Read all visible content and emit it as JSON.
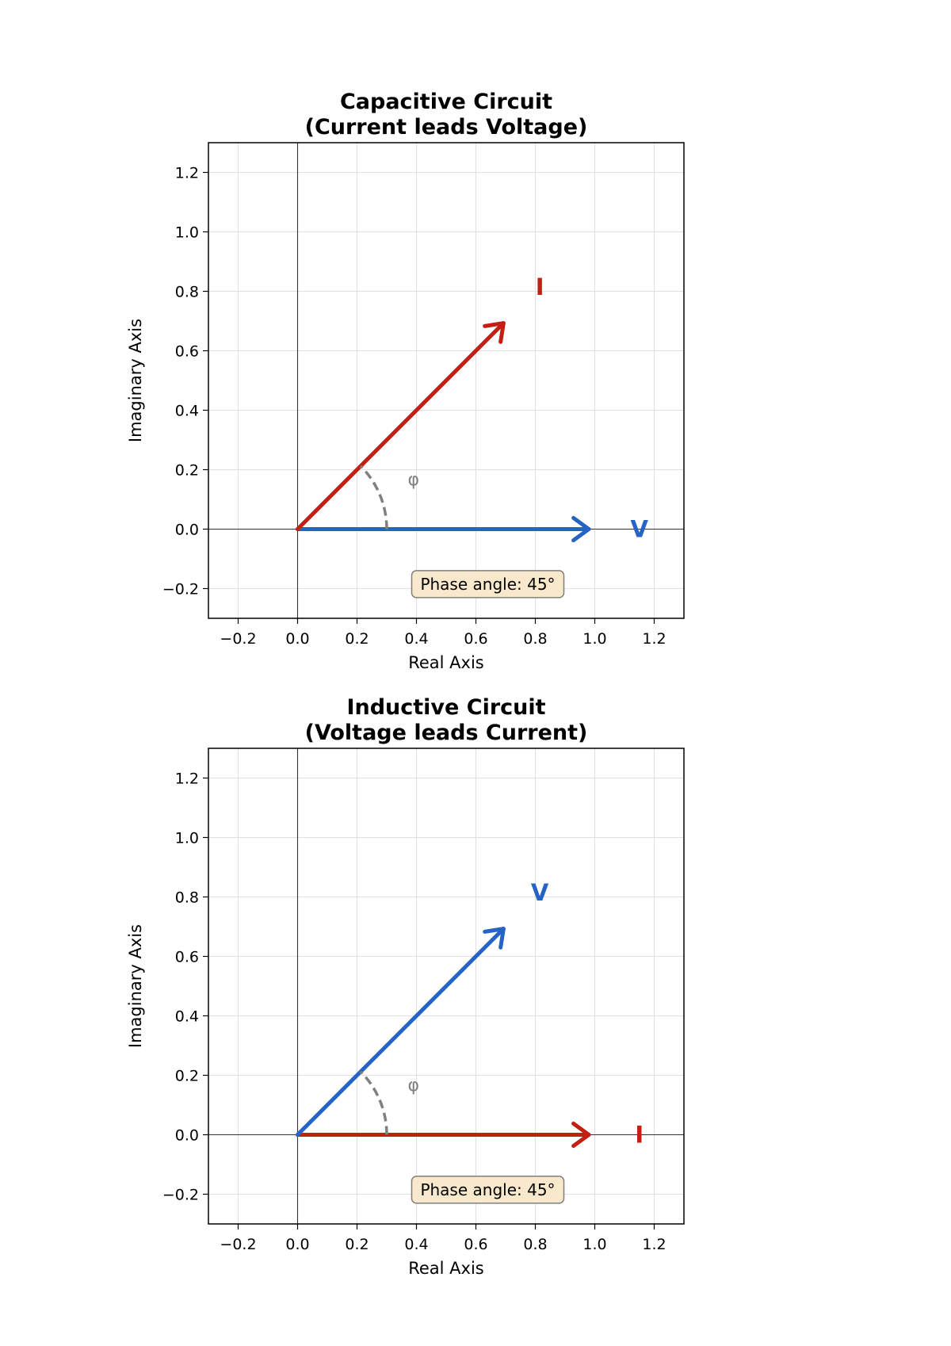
{
  "chart_data": [
    {
      "type": "phasor",
      "title": "Capacitive Circuit\n(Current leads Voltage)",
      "xlabel": "Real Axis",
      "ylabel": "Imaginary Axis",
      "xlim": [
        -0.3,
        1.3
      ],
      "ylim": [
        -0.3,
        1.3
      ],
      "xticks": [
        -0.2,
        0.0,
        0.2,
        0.4,
        0.6,
        0.8,
        1.0,
        1.2
      ],
      "yticks": [
        -0.2,
        0.0,
        0.2,
        0.4,
        0.6,
        0.8,
        1.0,
        1.2
      ],
      "grid": true,
      "phasors": [
        {
          "label": "V",
          "x": 0.98,
          "y": 0.0,
          "label_x": 1.15,
          "label_y": 0.0,
          "color": "#2563c7"
        },
        {
          "label": "I",
          "x": 0.693,
          "y": 0.693,
          "label_x": 0.815,
          "label_y": 0.815,
          "color": "#c41f12"
        }
      ],
      "angle_arc": {
        "radius": 0.3,
        "from_deg": 0,
        "to_deg": 45,
        "label": "φ",
        "label_x": 0.39,
        "label_y": 0.17,
        "color": "#808080"
      },
      "annotation": {
        "text": "Phase angle: 45°",
        "x": 0.64,
        "y": -0.185
      }
    },
    {
      "type": "phasor",
      "title": "Inductive Circuit\n(Voltage leads Current)",
      "xlabel": "Real Axis",
      "ylabel": "Imaginary Axis",
      "xlim": [
        -0.3,
        1.3
      ],
      "ylim": [
        -0.3,
        1.3
      ],
      "xticks": [
        -0.2,
        0.0,
        0.2,
        0.4,
        0.6,
        0.8,
        1.0,
        1.2
      ],
      "yticks": [
        -0.2,
        0.0,
        0.2,
        0.4,
        0.6,
        0.8,
        1.0,
        1.2
      ],
      "grid": true,
      "phasors": [
        {
          "label": "I",
          "x": 0.98,
          "y": 0.0,
          "label_x": 1.15,
          "label_y": 0.0,
          "color": "#c41f12"
        },
        {
          "label": "V",
          "x": 0.693,
          "y": 0.693,
          "label_x": 0.815,
          "label_y": 0.815,
          "color": "#2563c7"
        }
      ],
      "angle_arc": {
        "radius": 0.3,
        "from_deg": 0,
        "to_deg": 45,
        "label": "φ",
        "label_x": 0.39,
        "label_y": 0.17,
        "color": "#808080"
      },
      "annotation": {
        "text": "Phase angle: 45°",
        "x": 0.64,
        "y": -0.185
      }
    }
  ]
}
